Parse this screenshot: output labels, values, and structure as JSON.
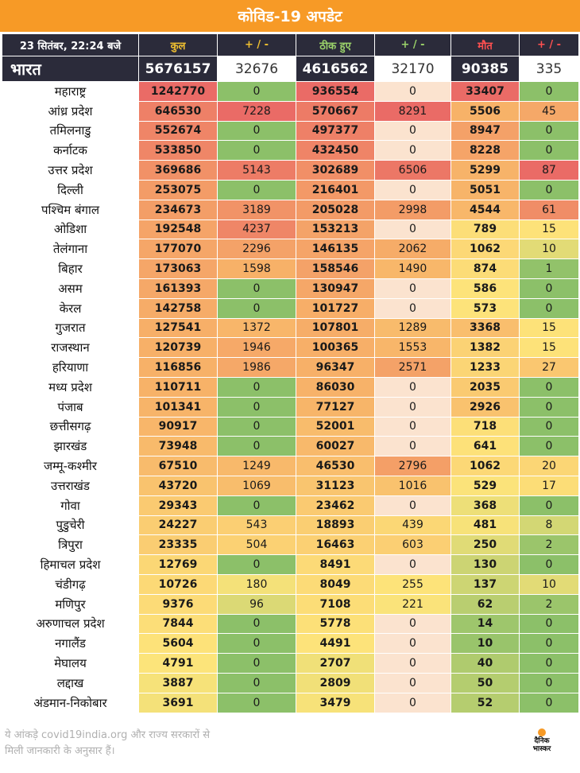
{
  "title": "कोविड-19 अपडेट",
  "header": {
    "date": "23 सितंबर, 22:24 बजे",
    "total": "कुल",
    "delta_total": "+ / -",
    "recovered": "ठीक हुए",
    "delta_recovered": "+ / -",
    "deaths": "मौत",
    "delta_deaths": "+ / -"
  },
  "india": {
    "name": "भारत",
    "total": "5676157",
    "delta_total": "32676",
    "recovered": "4616562",
    "delta_recovered": "32170",
    "deaths": "90385",
    "delta_deaths": "335"
  },
  "states": [
    {
      "name": "महाराष्ट्र",
      "total": "1242770",
      "delta_total": "0",
      "recovered": "936554",
      "delta_recovered": "0",
      "deaths": "33407",
      "delta_deaths": "0"
    },
    {
      "name": "आंध्र प्रदेश",
      "total": "646530",
      "delta_total": "7228",
      "recovered": "570667",
      "delta_recovered": "8291",
      "deaths": "5506",
      "delta_deaths": "45"
    },
    {
      "name": "तमिलनाडु",
      "total": "552674",
      "delta_total": "0",
      "recovered": "497377",
      "delta_recovered": "0",
      "deaths": "8947",
      "delta_deaths": "0"
    },
    {
      "name": "कर्नाटक",
      "total": "533850",
      "delta_total": "0",
      "recovered": "432450",
      "delta_recovered": "0",
      "deaths": "8228",
      "delta_deaths": "0"
    },
    {
      "name": "उत्तर प्रदेश",
      "total": "369686",
      "delta_total": "5143",
      "recovered": "302689",
      "delta_recovered": "6506",
      "deaths": "5299",
      "delta_deaths": "87"
    },
    {
      "name": "दिल्ली",
      "total": "253075",
      "delta_total": "0",
      "recovered": "216401",
      "delta_recovered": "0",
      "deaths": "5051",
      "delta_deaths": "0"
    },
    {
      "name": "पश्चिम बंगाल",
      "total": "234673",
      "delta_total": "3189",
      "recovered": "205028",
      "delta_recovered": "2998",
      "deaths": "4544",
      "delta_deaths": "61"
    },
    {
      "name": "ओडिशा",
      "total": "192548",
      "delta_total": "4237",
      "recovered": "153213",
      "delta_recovered": "0",
      "deaths": "789",
      "delta_deaths": "15"
    },
    {
      "name": "तेलंगाना",
      "total": "177070",
      "delta_total": "2296",
      "recovered": "146135",
      "delta_recovered": "2062",
      "deaths": "1062",
      "delta_deaths": "10"
    },
    {
      "name": "बिहार",
      "total": "173063",
      "delta_total": "1598",
      "recovered": "158546",
      "delta_recovered": "1490",
      "deaths": "874",
      "delta_deaths": "1"
    },
    {
      "name": "असम",
      "total": "161393",
      "delta_total": "0",
      "recovered": "130947",
      "delta_recovered": "0",
      "deaths": "586",
      "delta_deaths": "0"
    },
    {
      "name": "केरल",
      "total": "142758",
      "delta_total": "0",
      "recovered": "101727",
      "delta_recovered": "0",
      "deaths": "573",
      "delta_deaths": "0"
    },
    {
      "name": "गुजरात",
      "total": "127541",
      "delta_total": "1372",
      "recovered": "107801",
      "delta_recovered": "1289",
      "deaths": "3368",
      "delta_deaths": "15"
    },
    {
      "name": "राजस्थान",
      "total": "120739",
      "delta_total": "1946",
      "recovered": "100365",
      "delta_recovered": "1553",
      "deaths": "1382",
      "delta_deaths": "15"
    },
    {
      "name": "हरियाणा",
      "total": "116856",
      "delta_total": "1986",
      "recovered": "96347",
      "delta_recovered": "2571",
      "deaths": "1233",
      "delta_deaths": "27"
    },
    {
      "name": "मध्य प्रदेश",
      "total": "110711",
      "delta_total": "0",
      "recovered": "86030",
      "delta_recovered": "0",
      "deaths": "2035",
      "delta_deaths": "0"
    },
    {
      "name": "पंजाब",
      "total": "101341",
      "delta_total": "0",
      "recovered": "77127",
      "delta_recovered": "0",
      "deaths": "2926",
      "delta_deaths": "0"
    },
    {
      "name": "छत्तीसगढ़",
      "total": "90917",
      "delta_total": "0",
      "recovered": "52001",
      "delta_recovered": "0",
      "deaths": "718",
      "delta_deaths": "0"
    },
    {
      "name": "झारखंड",
      "total": "73948",
      "delta_total": "0",
      "recovered": "60027",
      "delta_recovered": "0",
      "deaths": "641",
      "delta_deaths": "0"
    },
    {
      "name": "जम्मू-कश्मीर",
      "total": "67510",
      "delta_total": "1249",
      "recovered": "46530",
      "delta_recovered": "2796",
      "deaths": "1062",
      "delta_deaths": "20"
    },
    {
      "name": "उत्तराखंड",
      "total": "43720",
      "delta_total": "1069",
      "recovered": "31123",
      "delta_recovered": "1016",
      "deaths": "529",
      "delta_deaths": "17"
    },
    {
      "name": "गोवा",
      "total": "29343",
      "delta_total": "0",
      "recovered": "23462",
      "delta_recovered": "0",
      "deaths": "368",
      "delta_deaths": "0"
    },
    {
      "name": "पुडुचेरी",
      "total": "24227",
      "delta_total": "543",
      "recovered": "18893",
      "delta_recovered": "439",
      "deaths": "481",
      "delta_deaths": "8"
    },
    {
      "name": "त्रिपुरा",
      "total": "23335",
      "delta_total": "504",
      "recovered": "16463",
      "delta_recovered": "603",
      "deaths": "250",
      "delta_deaths": "2"
    },
    {
      "name": "हिमाचल प्रदेश",
      "total": "12769",
      "delta_total": "0",
      "recovered": "8491",
      "delta_recovered": "0",
      "deaths": "130",
      "delta_deaths": "0"
    },
    {
      "name": "चंडीगढ़",
      "total": "10726",
      "delta_total": "180",
      "recovered": "8049",
      "delta_recovered": "255",
      "deaths": "137",
      "delta_deaths": "10"
    },
    {
      "name": "मणिपुर",
      "total": "9376",
      "delta_total": "96",
      "recovered": "7108",
      "delta_recovered": "221",
      "deaths": "62",
      "delta_deaths": "2"
    },
    {
      "name": "अरुणाचल प्रदेश",
      "total": "7844",
      "delta_total": "0",
      "recovered": "5778",
      "delta_recovered": "0",
      "deaths": "14",
      "delta_deaths": "0"
    },
    {
      "name": "नगालैंड",
      "total": "5604",
      "delta_total": "0",
      "recovered": "4491",
      "delta_recovered": "0",
      "deaths": "10",
      "delta_deaths": "0"
    },
    {
      "name": "मेघालय",
      "total": "4791",
      "delta_total": "0",
      "recovered": "2707",
      "delta_recovered": "0",
      "deaths": "40",
      "delta_deaths": "0"
    },
    {
      "name": "लद्दाख",
      "total": "3887",
      "delta_total": "0",
      "recovered": "2809",
      "delta_recovered": "0",
      "deaths": "50",
      "delta_deaths": "0"
    },
    {
      "name": "अंडमान-निकोबार",
      "total": "3691",
      "delta_total": "0",
      "recovered": "3479",
      "delta_recovered": "0",
      "deaths": "52",
      "delta_deaths": "0"
    }
  ],
  "footer": {
    "note": "ये आंकड़े covid19india.org और राज्य सरकारों से\nमिली जानकारी के अनुसार हैं।",
    "logo_text": "दैनिक\nभास्कर"
  },
  "colors": {
    "title_bg": "#f79a26",
    "header_bg": "#2b2b3a",
    "scale_green": "#8cc069",
    "scale_yellow": "#fde47a",
    "scale_orange": "#f7b168",
    "scale_red": "#ea6b66",
    "recovered_delta_zero": "#fbe3cf"
  }
}
